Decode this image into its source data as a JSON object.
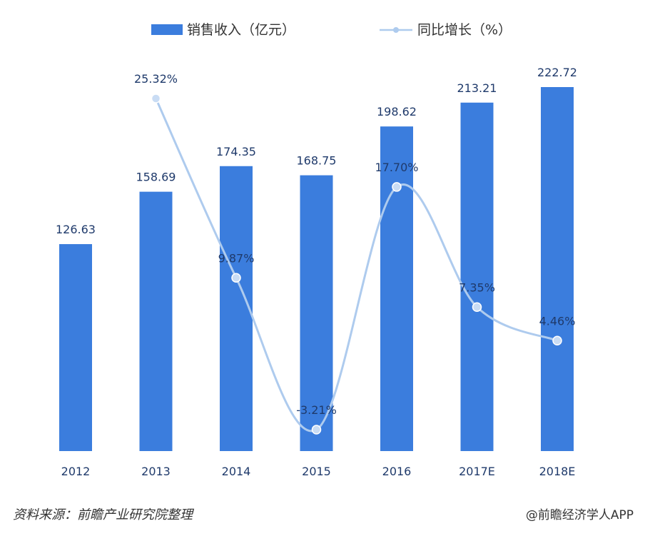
{
  "chart_data": {
    "type": "bar",
    "categories": [
      "2012",
      "2013",
      "2014",
      "2015",
      "2016",
      "2017E",
      "2018E"
    ],
    "series": [
      {
        "name": "销售收入（亿元）",
        "type": "bar",
        "axis": "left",
        "values": [
          126.63,
          158.69,
          174.35,
          168.75,
          198.62,
          213.21,
          222.72
        ],
        "labels": [
          "126.63",
          "158.69",
          "174.35",
          "168.75",
          "198.62",
          "213.21",
          "222.72"
        ],
        "color": "#3b7ddd"
      },
      {
        "name": "同比增长（%）",
        "type": "line",
        "axis": "right",
        "values": [
          null,
          25.32,
          9.87,
          -3.21,
          17.7,
          7.35,
          4.46
        ],
        "labels": [
          "",
          "25.32%",
          "9.87%",
          "-3.21%",
          "17.70%",
          "7.35%",
          "4.46%"
        ],
        "color": "#aecbee"
      }
    ],
    "bar_axis_range": [
      0,
      222.72
    ],
    "line_axis_range": [
      -3.21,
      25.32
    ],
    "legend_position": "top-center",
    "grid": false
  },
  "footer": {
    "source": "资料来源：前瞻产业研究院整理",
    "app": "@前瞻经济学人APP"
  }
}
